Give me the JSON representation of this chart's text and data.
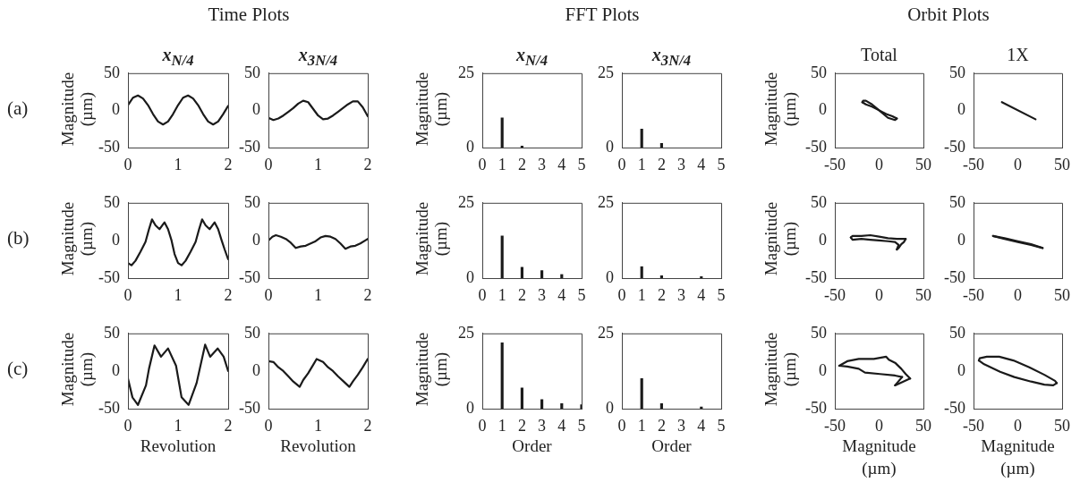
{
  "chart_data": [
    {
      "type": "line",
      "title": "x$_{N/4}$",
      "ylabel": "Magnitude (µm)",
      "annotations": [
        "Time Plots",
        "(a)"
      ],
      "x": [
        0,
        0.1,
        0.2,
        0.3,
        0.4,
        0.5,
        0.6,
        0.7,
        0.8,
        0.9,
        1.0,
        1.1,
        1.2,
        1.3,
        1.4,
        1.5,
        1.6,
        1.7,
        1.8,
        1.9,
        2.0
      ],
      "values": [
        7,
        17,
        20,
        16,
        7,
        -5,
        -15,
        -19,
        -15,
        -5,
        7,
        17,
        20,
        16,
        7,
        -5,
        -15,
        -19,
        -15,
        -5,
        6
      ],
      "color": "#1a1a1a",
      "marker": "none",
      "xlim": [
        0,
        2
      ],
      "xticks": [
        0,
        1,
        2
      ],
      "ylim": [
        -50,
        50
      ],
      "yticks": [
        -50,
        0,
        50
      ]
    },
    {
      "type": "line",
      "title": "x$_{3N/4}$",
      "x": [
        0,
        0.1,
        0.2,
        0.3,
        0.4,
        0.5,
        0.6,
        0.7,
        0.8,
        0.9,
        1.0,
        1.1,
        1.2,
        1.3,
        1.4,
        1.5,
        1.6,
        1.7,
        1.8,
        1.9,
        2.0
      ],
      "values": [
        -10,
        -13,
        -11,
        -7,
        -2,
        3,
        9,
        13,
        11,
        2,
        -7,
        -12,
        -11,
        -7,
        -2,
        3,
        8,
        12,
        12,
        4,
        -8
      ],
      "color": "#1a1a1a",
      "marker": "none",
      "xlim": [
        0,
        2
      ],
      "xticks": [
        0,
        1,
        2
      ],
      "ylim": [
        -50,
        50
      ],
      "yticks": [
        -50,
        0,
        50
      ]
    },
    {
      "type": "bar",
      "title": "x$_{N/4}$",
      "ylabel": "Magnitude (µm)",
      "annotations": [
        "FFT Plots"
      ],
      "x": [
        1,
        2
      ],
      "values": [
        10,
        0.5
      ],
      "color": "#1a1a1a",
      "xlim": [
        0,
        5
      ],
      "xticks": [
        0,
        1,
        2,
        3,
        4,
        5
      ],
      "ylim": [
        0,
        25
      ],
      "yticks": [
        0,
        25
      ]
    },
    {
      "type": "bar",
      "title": "x$_{3N/4}$",
      "x": [
        1,
        2
      ],
      "values": [
        6.2,
        1.4
      ],
      "color": "#1a1a1a",
      "xlim": [
        0,
        5
      ],
      "xticks": [
        0,
        1,
        2,
        3,
        4,
        5
      ],
      "ylim": [
        0,
        25
      ],
      "yticks": [
        0,
        25
      ]
    },
    {
      "type": "line",
      "title": "Total",
      "ylabel": "Magnitude (µm)",
      "annotations": [
        "Orbit Plots"
      ],
      "series": [
        {
          "color": "#1a1a1a",
          "x": [
            -19,
            -18,
            -15,
            -8,
            0,
            8,
            15,
            20
          ],
          "values": [
            11,
            13,
            13,
            8,
            0,
            -5,
            -8,
            -11
          ]
        },
        {
          "color": "#1a1a1a",
          "x": [
            -19,
            -15,
            -8,
            0,
            10,
            18,
            20
          ],
          "values": [
            11,
            8,
            5,
            0,
            -10,
            -13,
            -11
          ]
        }
      ],
      "marker": "none",
      "xlim": [
        -50,
        50
      ],
      "xticks": [
        -50,
        0,
        50
      ],
      "ylim": [
        -50,
        50
      ],
      "yticks": [
        -50,
        0,
        50
      ]
    },
    {
      "type": "line",
      "title": "1X",
      "x": [
        -18,
        20
      ],
      "values": [
        11,
        -12
      ],
      "color": "#1a1a1a",
      "marker": "none",
      "xlim": [
        -50,
        50
      ],
      "xticks": [
        -50,
        0,
        50
      ],
      "ylim": [
        -50,
        50
      ],
      "yticks": [
        -50,
        0,
        50
      ]
    },
    {
      "type": "line",
      "ylabel": "Magnitude (µm)",
      "annotations": [
        "(b)"
      ],
      "x": [
        0,
        0.07,
        0.15,
        0.25,
        0.35,
        0.42,
        0.48,
        0.55,
        0.63,
        0.73,
        0.8,
        0.87,
        0.93,
        1.0,
        1.07,
        1.15,
        1.25,
        1.35,
        1.42,
        1.48,
        1.55,
        1.63,
        1.73,
        1.8,
        1.87,
        1.93,
        2.0
      ],
      "values": [
        -30,
        -33,
        -27,
        -15,
        -2,
        15,
        28,
        20,
        15,
        24,
        15,
        0,
        -18,
        -30,
        -33,
        -27,
        -15,
        -2,
        15,
        28,
        20,
        15,
        24,
        15,
        0,
        -12,
        -25
      ],
      "color": "#1a1a1a",
      "marker": "none",
      "xlim": [
        0,
        2
      ],
      "xticks": [
        0,
        1,
        2
      ],
      "ylim": [
        -50,
        50
      ],
      "yticks": [
        -50,
        0,
        50
      ]
    },
    {
      "type": "line",
      "x": [
        0,
        0.08,
        0.15,
        0.25,
        0.35,
        0.45,
        0.55,
        0.65,
        0.75,
        0.85,
        0.95,
        1.05,
        1.15,
        1.25,
        1.35,
        1.45,
        1.55,
        1.65,
        1.75,
        1.85,
        1.95,
        2.0
      ],
      "values": [
        0,
        5,
        7,
        5,
        2,
        -3,
        -10,
        -8,
        -7,
        -4,
        -1,
        4,
        6,
        5,
        2,
        -4,
        -11,
        -8,
        -7,
        -4,
        0,
        2
      ],
      "color": "#1a1a1a",
      "marker": "none",
      "xlim": [
        0,
        2
      ],
      "xticks": [
        0,
        1,
        2
      ],
      "ylim": [
        -50,
        50
      ],
      "yticks": [
        -50,
        0,
        50
      ]
    },
    {
      "type": "bar",
      "ylabel": "Magnitude (µm)",
      "x": [
        1,
        2,
        3,
        4
      ],
      "values": [
        14,
        3.6,
        2.5,
        1.2
      ],
      "color": "#1a1a1a",
      "xlim": [
        0,
        5
      ],
      "xticks": [
        0,
        1,
        2,
        3,
        4,
        5
      ],
      "ylim": [
        0,
        25
      ],
      "yticks": [
        0,
        25
      ]
    },
    {
      "type": "bar",
      "x": [
        1,
        2,
        4
      ],
      "values": [
        3.8,
        0.8,
        0.5
      ],
      "color": "#1a1a1a",
      "xlim": [
        0,
        5
      ],
      "xticks": [
        0,
        1,
        2,
        3,
        4,
        5
      ],
      "ylim": [
        0,
        25
      ],
      "yticks": [
        0,
        25
      ]
    },
    {
      "type": "line",
      "ylabel": "Magnitude (µm)",
      "series": [
        {
          "color": "#1a1a1a",
          "x": [
            -32,
            -30,
            -20,
            -10,
            0,
            10,
            20,
            30
          ],
          "values": [
            4,
            6,
            6,
            7,
            5,
            3,
            2,
            2
          ]
        },
        {
          "color": "#1a1a1a",
          "x": [
            -32,
            -30,
            -20,
            -10,
            0,
            10,
            18,
            22
          ],
          "values": [
            4,
            1,
            2,
            1,
            0,
            -1,
            -2,
            -6
          ]
        },
        {
          "color": "#1a1a1a",
          "x": [
            20,
            22
          ],
          "values": [
            -12,
            -6
          ]
        },
        {
          "color": "#1a1a1a",
          "x": [
            20,
            22,
            25,
            28,
            30
          ],
          "values": [
            -12,
            -10,
            -5,
            -2,
            2
          ]
        }
      ],
      "marker": "none",
      "xlim": [
        -50,
        50
      ],
      "xticks": [
        -50,
        0,
        50
      ],
      "ylim": [
        -50,
        50
      ],
      "yticks": [
        -50,
        0,
        50
      ]
    },
    {
      "type": "line",
      "series": [
        {
          "color": "#1a1a1a",
          "x": [
            -28,
            -15,
            0,
            15,
            28
          ],
          "values": [
            6,
            3,
            -1,
            -5,
            -10
          ]
        },
        {
          "color": "#1a1a1a",
          "x": [
            -28,
            -15,
            0,
            15,
            28
          ],
          "values": [
            6,
            2,
            -2,
            -6,
            -10
          ]
        }
      ],
      "marker": "none",
      "xlim": [
        -50,
        50
      ],
      "xticks": [
        -50,
        0,
        50
      ],
      "ylim": [
        -50,
        50
      ],
      "yticks": [
        -50,
        0,
        50
      ]
    },
    {
      "type": "line",
      "ylabel": "Magnitude (µm)",
      "xlabel": "Revolution",
      "annotations": [
        "(c)"
      ],
      "x": [
        0,
        0.09,
        0.2,
        0.36,
        0.42,
        0.53,
        0.66,
        0.8,
        0.96,
        1.07,
        1.21,
        1.37,
        1.54,
        1.64,
        1.79,
        1.91,
        2.0
      ],
      "values": [
        -10,
        -35,
        -45,
        -19,
        3,
        34,
        19,
        30,
        7,
        -35,
        -45,
        -16,
        35,
        19,
        30,
        19,
        0
      ],
      "color": "#1a1a1a",
      "marker": "none",
      "xlim": [
        0,
        2
      ],
      "xticks": [
        0,
        1,
        2
      ],
      "ylim": [
        -50,
        50
      ],
      "yticks": [
        -50,
        0,
        50
      ]
    },
    {
      "type": "line",
      "xlabel": "Revolution",
      "x": [
        0,
        0.1,
        0.2,
        0.3,
        0.4,
        0.5,
        0.63,
        0.7,
        0.8,
        0.9,
        0.97,
        1.1,
        1.2,
        1.3,
        1.4,
        1.5,
        1.63,
        1.7,
        1.8,
        1.9,
        2.0
      ],
      "values": [
        13,
        12,
        5,
        0,
        -7,
        -14,
        -21,
        -12,
        -3,
        8,
        16,
        12,
        5,
        0,
        -7,
        -13,
        -21,
        -14,
        -5,
        5,
        16
      ],
      "color": "#1a1a1a",
      "marker": "none",
      "xlim": [
        0,
        2
      ],
      "xticks": [
        0,
        1,
        2
      ],
      "ylim": [
        -50,
        50
      ],
      "yticks": [
        -50,
        0,
        50
      ]
    },
    {
      "type": "bar",
      "ylabel": "Magnitude (µm)",
      "xlabel": "Order",
      "x": [
        1,
        2,
        3,
        4,
        5
      ],
      "values": [
        21.9,
        6.9,
        3,
        1.7,
        1.3
      ],
      "color": "#1a1a1a",
      "xlim": [
        0,
        5
      ],
      "xticks": [
        0,
        1,
        2,
        3,
        4,
        5
      ],
      "ylim": [
        0,
        25
      ],
      "yticks": [
        0,
        25
      ]
    },
    {
      "type": "bar",
      "xlabel": "Order",
      "x": [
        1,
        2,
        4
      ],
      "values": [
        10,
        1.7,
        0.6
      ],
      "color": "#1a1a1a",
      "xlim": [
        0,
        5
      ],
      "xticks": [
        0,
        1,
        2,
        3,
        4,
        5
      ],
      "ylim": [
        0,
        25
      ],
      "yticks": [
        0,
        25
      ]
    },
    {
      "type": "line",
      "ylabel": "Magnitude (µm)",
      "xlabel": "Magnitude (µm)",
      "series": [
        {
          "color": "#1a1a1a",
          "x": [
            -45,
            -36,
            -23,
            -6,
            8,
            11,
            18,
            25,
            30,
            35
          ],
          "values": [
            7,
            13,
            16,
            16,
            19,
            15,
            11,
            3,
            -4,
            -10
          ]
        },
        {
          "color": "#1a1a1a",
          "x": [
            -45,
            -36,
            -23,
            -16,
            1,
            18,
            26
          ],
          "values": [
            7,
            6,
            3,
            -2,
            -4,
            -6,
            -8
          ]
        },
        {
          "color": "#1a1a1a",
          "x": [
            18,
            35
          ],
          "values": [
            -19,
            -10
          ]
        },
        {
          "color": "#1a1a1a",
          "x": [
            18,
            26
          ],
          "values": [
            -19,
            -8
          ]
        }
      ],
      "marker": "none",
      "xlim": [
        -50,
        50
      ],
      "xticks": [
        -50,
        0,
        50
      ],
      "ylim": [
        -50,
        50
      ],
      "yticks": [
        -50,
        0,
        50
      ]
    },
    {
      "type": "line",
      "xlabel": "Magnitude (µm)",
      "series": [
        {
          "color": "#1a1a1a",
          "x": [
            -44,
            -43,
            -35,
            -21,
            -5,
            13,
            30,
            42,
            44
          ],
          "values": [
            14,
            17,
            19,
            19,
            14,
            5,
            -5,
            -13,
            -16
          ]
        },
        {
          "color": "#1a1a1a",
          "x": [
            -44,
            -38,
            -20,
            -4,
            15,
            30,
            40,
            44
          ],
          "values": [
            14,
            9,
            -1,
            -8,
            -14,
            -18,
            -19,
            -16
          ]
        }
      ],
      "marker": "none",
      "xlim": [
        -50,
        50
      ],
      "xticks": [
        -50,
        0,
        50
      ],
      "ylim": [
        -50,
        50
      ],
      "yticks": [
        -50,
        0,
        50
      ]
    }
  ]
}
